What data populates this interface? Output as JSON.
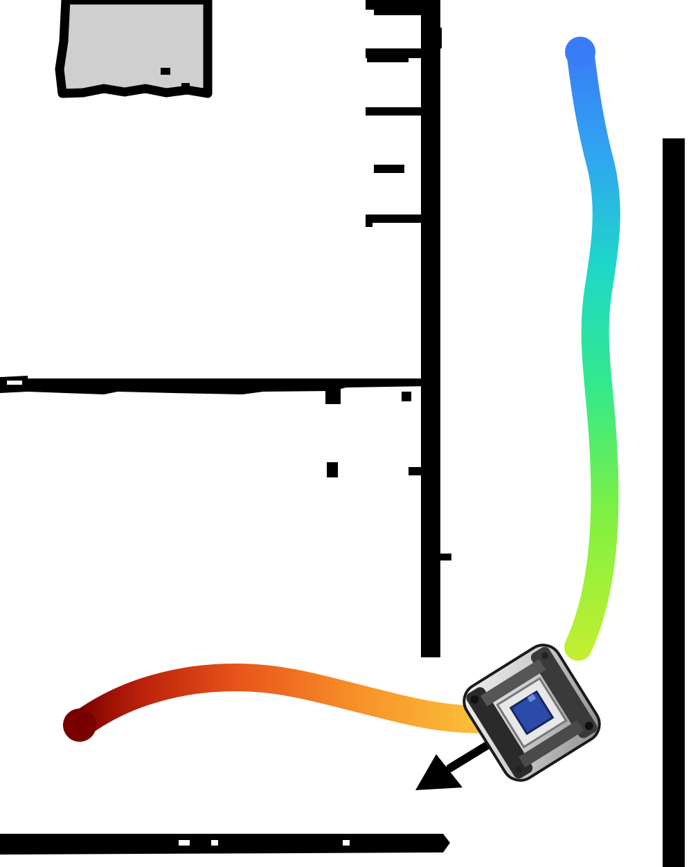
{
  "scene": {
    "type": "occupancy-grid-map-with-robot-trajectory",
    "background_color": "#ffffff",
    "wall_color": "#000000",
    "obstacle_fill_color": "#cfcfcf",
    "trajectory": {
      "colormap": "jet",
      "start_color": "#3a7cf5",
      "end_color": "#7a0000",
      "legend": "none"
    },
    "robot": {
      "icon": "robot-top-view-icon",
      "body_color": "#d6d6d6",
      "sensor_color": "#2c4aa8",
      "heading_arrow_color": "#000000"
    }
  }
}
